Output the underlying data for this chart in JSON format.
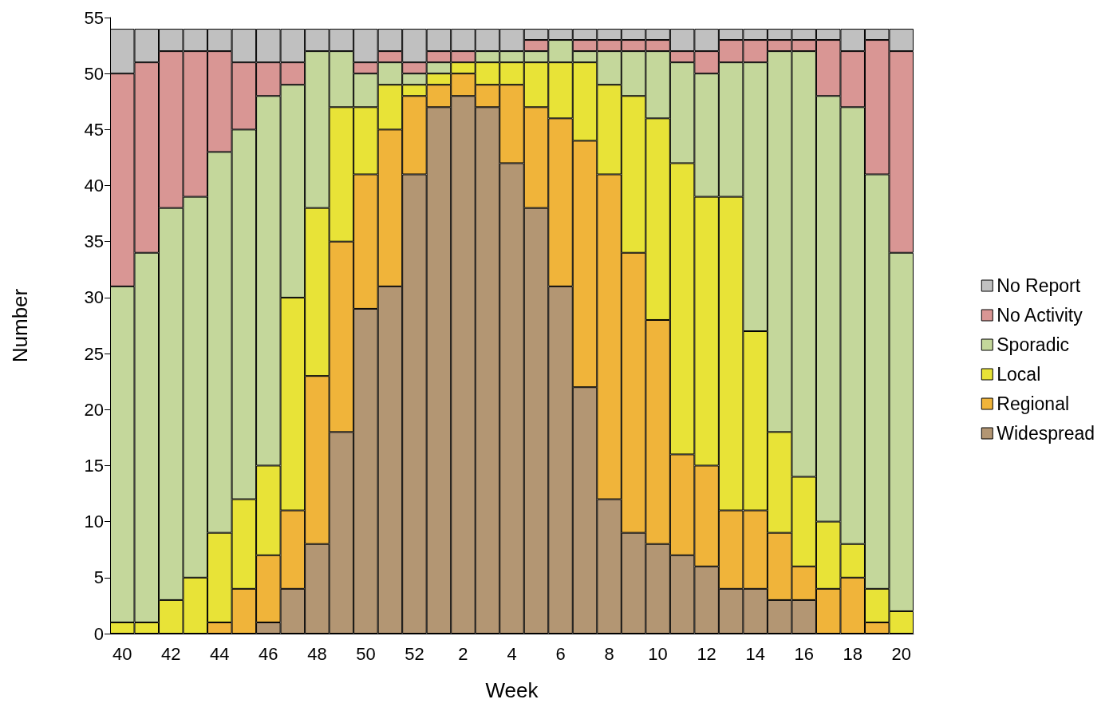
{
  "chart_data": {
    "type": "bar",
    "stacked": true,
    "xlabel": "Week",
    "ylabel": "Number",
    "categories": [
      "40",
      null,
      "42",
      null,
      "44",
      null,
      "46",
      null,
      "48",
      null,
      "50",
      null,
      "52",
      null,
      "2",
      null,
      "4",
      null,
      "6",
      null,
      "8",
      null,
      "10",
      null,
      "12",
      null,
      "14",
      null,
      "16",
      null,
      "18",
      null,
      "20"
    ],
    "ylim": [
      0,
      55
    ],
    "yticks": [
      0,
      5,
      10,
      15,
      20,
      25,
      30,
      35,
      40,
      45,
      50,
      55
    ],
    "grid": false,
    "legend": "right",
    "series": [
      {
        "name": "Widespread",
        "color": "#b39673",
        "values": [
          0,
          0,
          0,
          0,
          0,
          0,
          1,
          4,
          8,
          18,
          29,
          31,
          41,
          47,
          48,
          47,
          42,
          38,
          31,
          22,
          12,
          9,
          8,
          7,
          6,
          4,
          4,
          3,
          3,
          0,
          0,
          0,
          0
        ]
      },
      {
        "name": "Regional",
        "color": "#f0b43a",
        "values": [
          0,
          0,
          0,
          0,
          1,
          4,
          6,
          7,
          15,
          17,
          12,
          14,
          7,
          2,
          2,
          2,
          7,
          9,
          15,
          22,
          29,
          25,
          20,
          9,
          9,
          7,
          7,
          6,
          3,
          4,
          5,
          1,
          0
        ]
      },
      {
        "name": "Local",
        "color": "#e8e337",
        "values": [
          1,
          1,
          3,
          5,
          8,
          8,
          8,
          19,
          15,
          12,
          6,
          4,
          1,
          1,
          1,
          2,
          2,
          4,
          5,
          7,
          8,
          14,
          18,
          26,
          24,
          28,
          16,
          9,
          8,
          6,
          3,
          3,
          2
        ]
      },
      {
        "name": "Sporadic",
        "color": "#c4d79b",
        "values": [
          30,
          33,
          35,
          34,
          34,
          33,
          33,
          19,
          14,
          5,
          3,
          2,
          1,
          1,
          0,
          1,
          1,
          1,
          2,
          1,
          3,
          4,
          6,
          9,
          11,
          12,
          24,
          34,
          38,
          38,
          39,
          37,
          32
        ]
      },
      {
        "name": "No Activity",
        "color": "#d99694",
        "values": [
          19,
          17,
          14,
          13,
          9,
          6,
          3,
          2,
          0,
          0,
          1,
          1,
          1,
          1,
          1,
          0,
          0,
          1,
          0,
          1,
          1,
          1,
          1,
          1,
          2,
          2,
          2,
          1,
          1,
          5,
          5,
          12,
          18
        ]
      },
      {
        "name": "No Report",
        "color": "#c0c0c0",
        "values": [
          4,
          3,
          2,
          2,
          2,
          3,
          3,
          3,
          2,
          2,
          3,
          2,
          3,
          2,
          2,
          2,
          2,
          1,
          1,
          1,
          1,
          1,
          1,
          2,
          2,
          1,
          1,
          1,
          1,
          1,
          2,
          1,
          2
        ]
      }
    ]
  }
}
